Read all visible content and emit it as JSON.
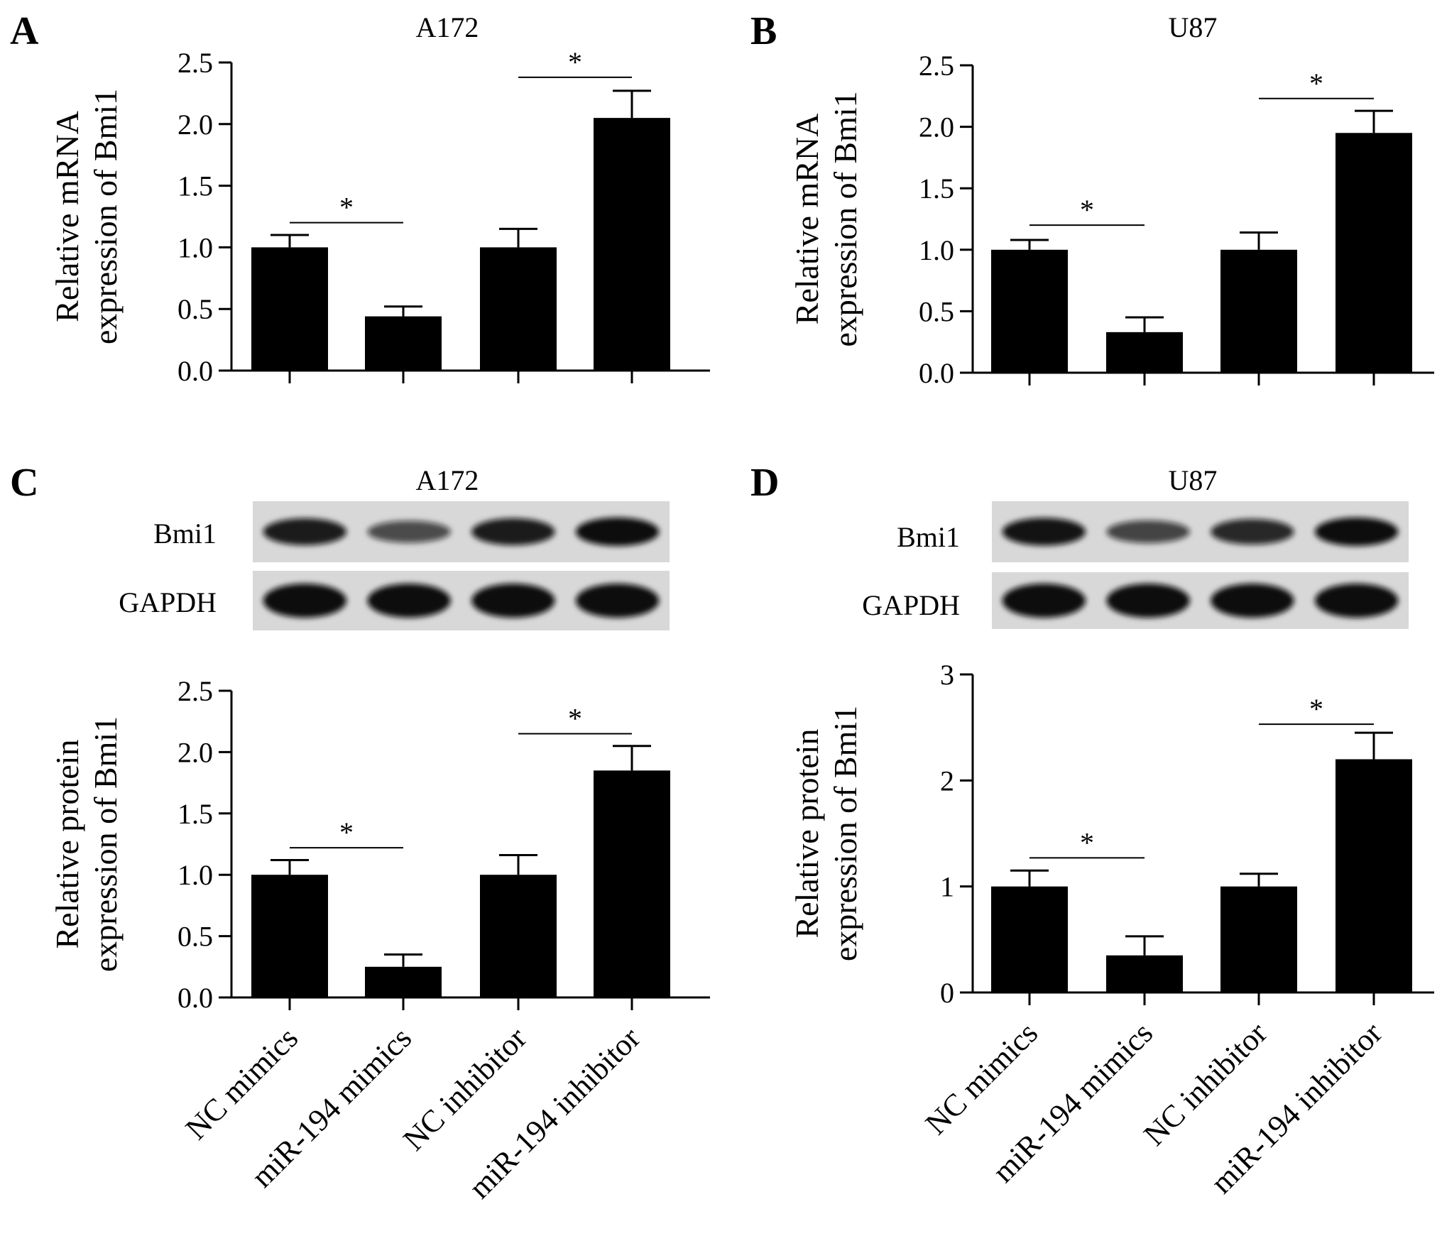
{
  "figure": {
    "categories": [
      "NC mimics",
      "miR-194 mimics",
      "NC inhibitor",
      "miR-194 inhibitor"
    ],
    "bar_color": "#000000",
    "blot_background": "#d8d8d8",
    "blot_band_color": "#111111"
  },
  "chart_data": [
    {
      "type": "bar",
      "panel": "A",
      "title": "A172",
      "ylabel": [
        "Relative mRNA",
        "expression of Bmi1"
      ],
      "categories": [
        "NC mimics",
        "miR-194 mimics",
        "NC inhibitor",
        "miR-194 inhibitor"
      ],
      "values": [
        1.0,
        0.44,
        1.0,
        2.05
      ],
      "errors": [
        0.1,
        0.08,
        0.15,
        0.22
      ],
      "ylim": [
        0,
        2.5
      ],
      "yticks": [
        "0.0",
        "0.5",
        "1.0",
        "1.5",
        "2.0",
        "2.5"
      ],
      "significance": [
        {
          "from": 0,
          "to": 1,
          "y": 1.2,
          "label": "*"
        },
        {
          "from": 2,
          "to": 3,
          "y": 2.38,
          "label": "*"
        }
      ],
      "show_category_labels": false
    },
    {
      "type": "bar",
      "panel": "B",
      "title": "U87",
      "ylabel": [
        "Relative mRNA",
        "expression of Bmi1"
      ],
      "categories": [
        "NC mimics",
        "miR-194 mimics",
        "NC inhibitor",
        "miR-194 inhibitor"
      ],
      "values": [
        1.0,
        0.33,
        1.0,
        1.95
      ],
      "errors": [
        0.08,
        0.12,
        0.14,
        0.18
      ],
      "ylim": [
        0,
        2.5
      ],
      "yticks": [
        "0.0",
        "0.5",
        "1.0",
        "1.5",
        "2.0",
        "2.5"
      ],
      "significance": [
        {
          "from": 0,
          "to": 1,
          "y": 1.2,
          "label": "*"
        },
        {
          "from": 2,
          "to": 3,
          "y": 2.23,
          "label": "*"
        }
      ],
      "show_category_labels": false
    },
    {
      "type": "bar",
      "panel": "C",
      "title": "A172",
      "ylabel": [
        "Relative protein",
        "expression of Bmi1"
      ],
      "categories": [
        "NC mimics",
        "miR-194 mimics",
        "NC inhibitor",
        "miR-194 inhibitor"
      ],
      "values": [
        1.0,
        0.25,
        1.0,
        1.85
      ],
      "errors": [
        0.12,
        0.1,
        0.16,
        0.2
      ],
      "ylim": [
        0,
        2.5
      ],
      "yticks": [
        "0.0",
        "0.5",
        "1.0",
        "1.5",
        "2.0",
        "2.5"
      ],
      "significance": [
        {
          "from": 0,
          "to": 1,
          "y": 1.22,
          "label": "*"
        },
        {
          "from": 2,
          "to": 3,
          "y": 2.15,
          "label": "*"
        }
      ],
      "show_category_labels": true,
      "blot": {
        "rows": [
          "Bmi1",
          "GAPDH"
        ],
        "intensity": [
          [
            0.9,
            0.55,
            0.9,
            1.0
          ],
          [
            1.0,
            1.0,
            1.0,
            1.0
          ]
        ]
      }
    },
    {
      "type": "bar",
      "panel": "D",
      "title": "U87",
      "ylabel": [
        "Relative protein",
        "expression of Bmi1"
      ],
      "categories": [
        "NC mimics",
        "miR-194 mimics",
        "NC inhibitor",
        "miR-194 inhibitor"
      ],
      "values": [
        1.0,
        0.35,
        1.0,
        2.2
      ],
      "errors": [
        0.15,
        0.18,
        0.12,
        0.25
      ],
      "ylim": [
        0,
        3
      ],
      "yticks": [
        "0",
        "1",
        "2",
        "3"
      ],
      "significance": [
        {
          "from": 0,
          "to": 1,
          "y": 1.27,
          "label": "*"
        },
        {
          "from": 2,
          "to": 3,
          "y": 2.53,
          "label": "*"
        }
      ],
      "show_category_labels": true,
      "blot": {
        "rows": [
          "Bmi1",
          "GAPDH"
        ],
        "intensity": [
          [
            0.95,
            0.6,
            0.8,
            1.0
          ],
          [
            1.0,
            1.0,
            1.0,
            1.0
          ]
        ]
      }
    }
  ]
}
